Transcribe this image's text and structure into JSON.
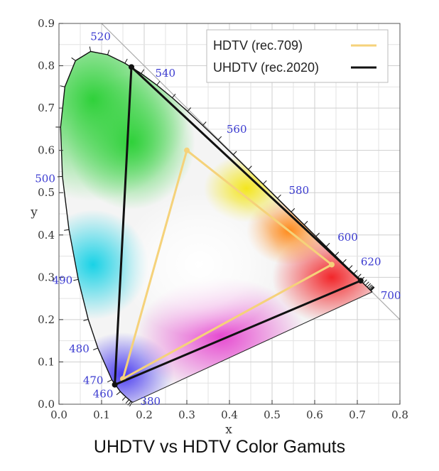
{
  "chart_data": {
    "type": "scatter",
    "title": "UHDTV vs HDTV Color Gamuts",
    "xlabel": "x",
    "ylabel": "y",
    "xlim": [
      0,
      0.8
    ],
    "ylim": [
      0,
      0.9
    ],
    "x_ticks": [
      "0.0",
      "0.1",
      "0.2",
      "0.3",
      "0.4",
      "0.5",
      "0.6",
      "0.7",
      "0.8"
    ],
    "y_ticks": [
      "0.0",
      "0.1",
      "0.2",
      "0.3",
      "0.4",
      "0.5",
      "0.6",
      "0.7",
      "0.8",
      "0.9"
    ],
    "grid": true,
    "legend_position": "top-right",
    "series": [
      {
        "name": "HDTV (rec.709)",
        "color": "#f5d27a",
        "points": [
          [
            0.64,
            0.33
          ],
          [
            0.3,
            0.6
          ],
          [
            0.15,
            0.06
          ]
        ]
      },
      {
        "name": "UHDTV (rec.2020)",
        "color": "#111111",
        "points": [
          [
            0.708,
            0.292
          ],
          [
            0.17,
            0.797
          ],
          [
            0.131,
            0.046
          ]
        ]
      }
    ],
    "spectral_locus": {
      "points": [
        [
          0.1741,
          0.005
        ],
        [
          0.1738,
          0.0049
        ],
        [
          0.1733,
          0.0048
        ],
        [
          0.1726,
          0.0048
        ],
        [
          0.1714,
          0.0051
        ],
        [
          0.1689,
          0.0069
        ],
        [
          0.1644,
          0.0109
        ],
        [
          0.1566,
          0.0177
        ],
        [
          0.144,
          0.0297
        ],
        [
          0.1241,
          0.0578
        ],
        [
          0.0913,
          0.1327
        ],
        [
          0.0687,
          0.2007
        ],
        [
          0.0454,
          0.295
        ],
        [
          0.0235,
          0.4127
        ],
        [
          0.0082,
          0.5384
        ],
        [
          0.0039,
          0.6548
        ],
        [
          0.0139,
          0.7502
        ],
        [
          0.0389,
          0.812
        ],
        [
          0.0743,
          0.8338
        ],
        [
          0.1142,
          0.8262
        ],
        [
          0.1547,
          0.8059
        ],
        [
          0.1929,
          0.7816
        ],
        [
          0.2296,
          0.7543
        ],
        [
          0.2658,
          0.7243
        ],
        [
          0.3016,
          0.6923
        ],
        [
          0.3373,
          0.6589
        ],
        [
          0.3731,
          0.6245
        ],
        [
          0.4087,
          0.5896
        ],
        [
          0.4441,
          0.5547
        ],
        [
          0.4788,
          0.5202
        ],
        [
          0.5125,
          0.4866
        ],
        [
          0.5448,
          0.4544
        ],
        [
          0.5752,
          0.4242
        ],
        [
          0.6029,
          0.3965
        ],
        [
          0.627,
          0.3725
        ],
        [
          0.6482,
          0.3514
        ],
        [
          0.6658,
          0.334
        ],
        [
          0.6801,
          0.3197
        ],
        [
          0.6915,
          0.3083
        ],
        [
          0.7006,
          0.2993
        ],
        [
          0.7079,
          0.292
        ],
        [
          0.714,
          0.2859
        ],
        [
          0.719,
          0.2809
        ],
        [
          0.723,
          0.277
        ],
        [
          0.726,
          0.274
        ],
        [
          0.7283,
          0.2717
        ],
        [
          0.73,
          0.27
        ],
        [
          0.7311,
          0.2689
        ],
        [
          0.732,
          0.268
        ],
        [
          0.7327,
          0.2673
        ],
        [
          0.7334,
          0.2666
        ],
        [
          0.734,
          0.266
        ],
        [
          0.7344,
          0.2656
        ],
        [
          0.7346,
          0.2654
        ],
        [
          0.7347,
          0.2653
        ]
      ],
      "wavelength_labels": [
        {
          "text": "380",
          "x": 0.1741,
          "y": 0.005
        },
        {
          "text": "460",
          "x": 0.144,
          "y": 0.0297
        },
        {
          "text": "470",
          "x": 0.1241,
          "y": 0.0578
        },
        {
          "text": "480",
          "x": 0.0913,
          "y": 0.1327
        },
        {
          "text": "490",
          "x": 0.0454,
          "y": 0.295
        },
        {
          "text": "500",
          "x": 0.0082,
          "y": 0.5384
        },
        {
          "text": "520",
          "x": 0.0743,
          "y": 0.8338
        },
        {
          "text": "540",
          "x": 0.2296,
          "y": 0.7543
        },
        {
          "text": "560",
          "x": 0.3731,
          "y": 0.6245
        },
        {
          "text": "580",
          "x": 0.5125,
          "y": 0.4866
        },
        {
          "text": "600",
          "x": 0.627,
          "y": 0.3725
        },
        {
          "text": "620",
          "x": 0.6915,
          "y": 0.3083
        },
        {
          "text": "700",
          "x": 0.7347,
          "y": 0.2653
        }
      ]
    }
  }
}
